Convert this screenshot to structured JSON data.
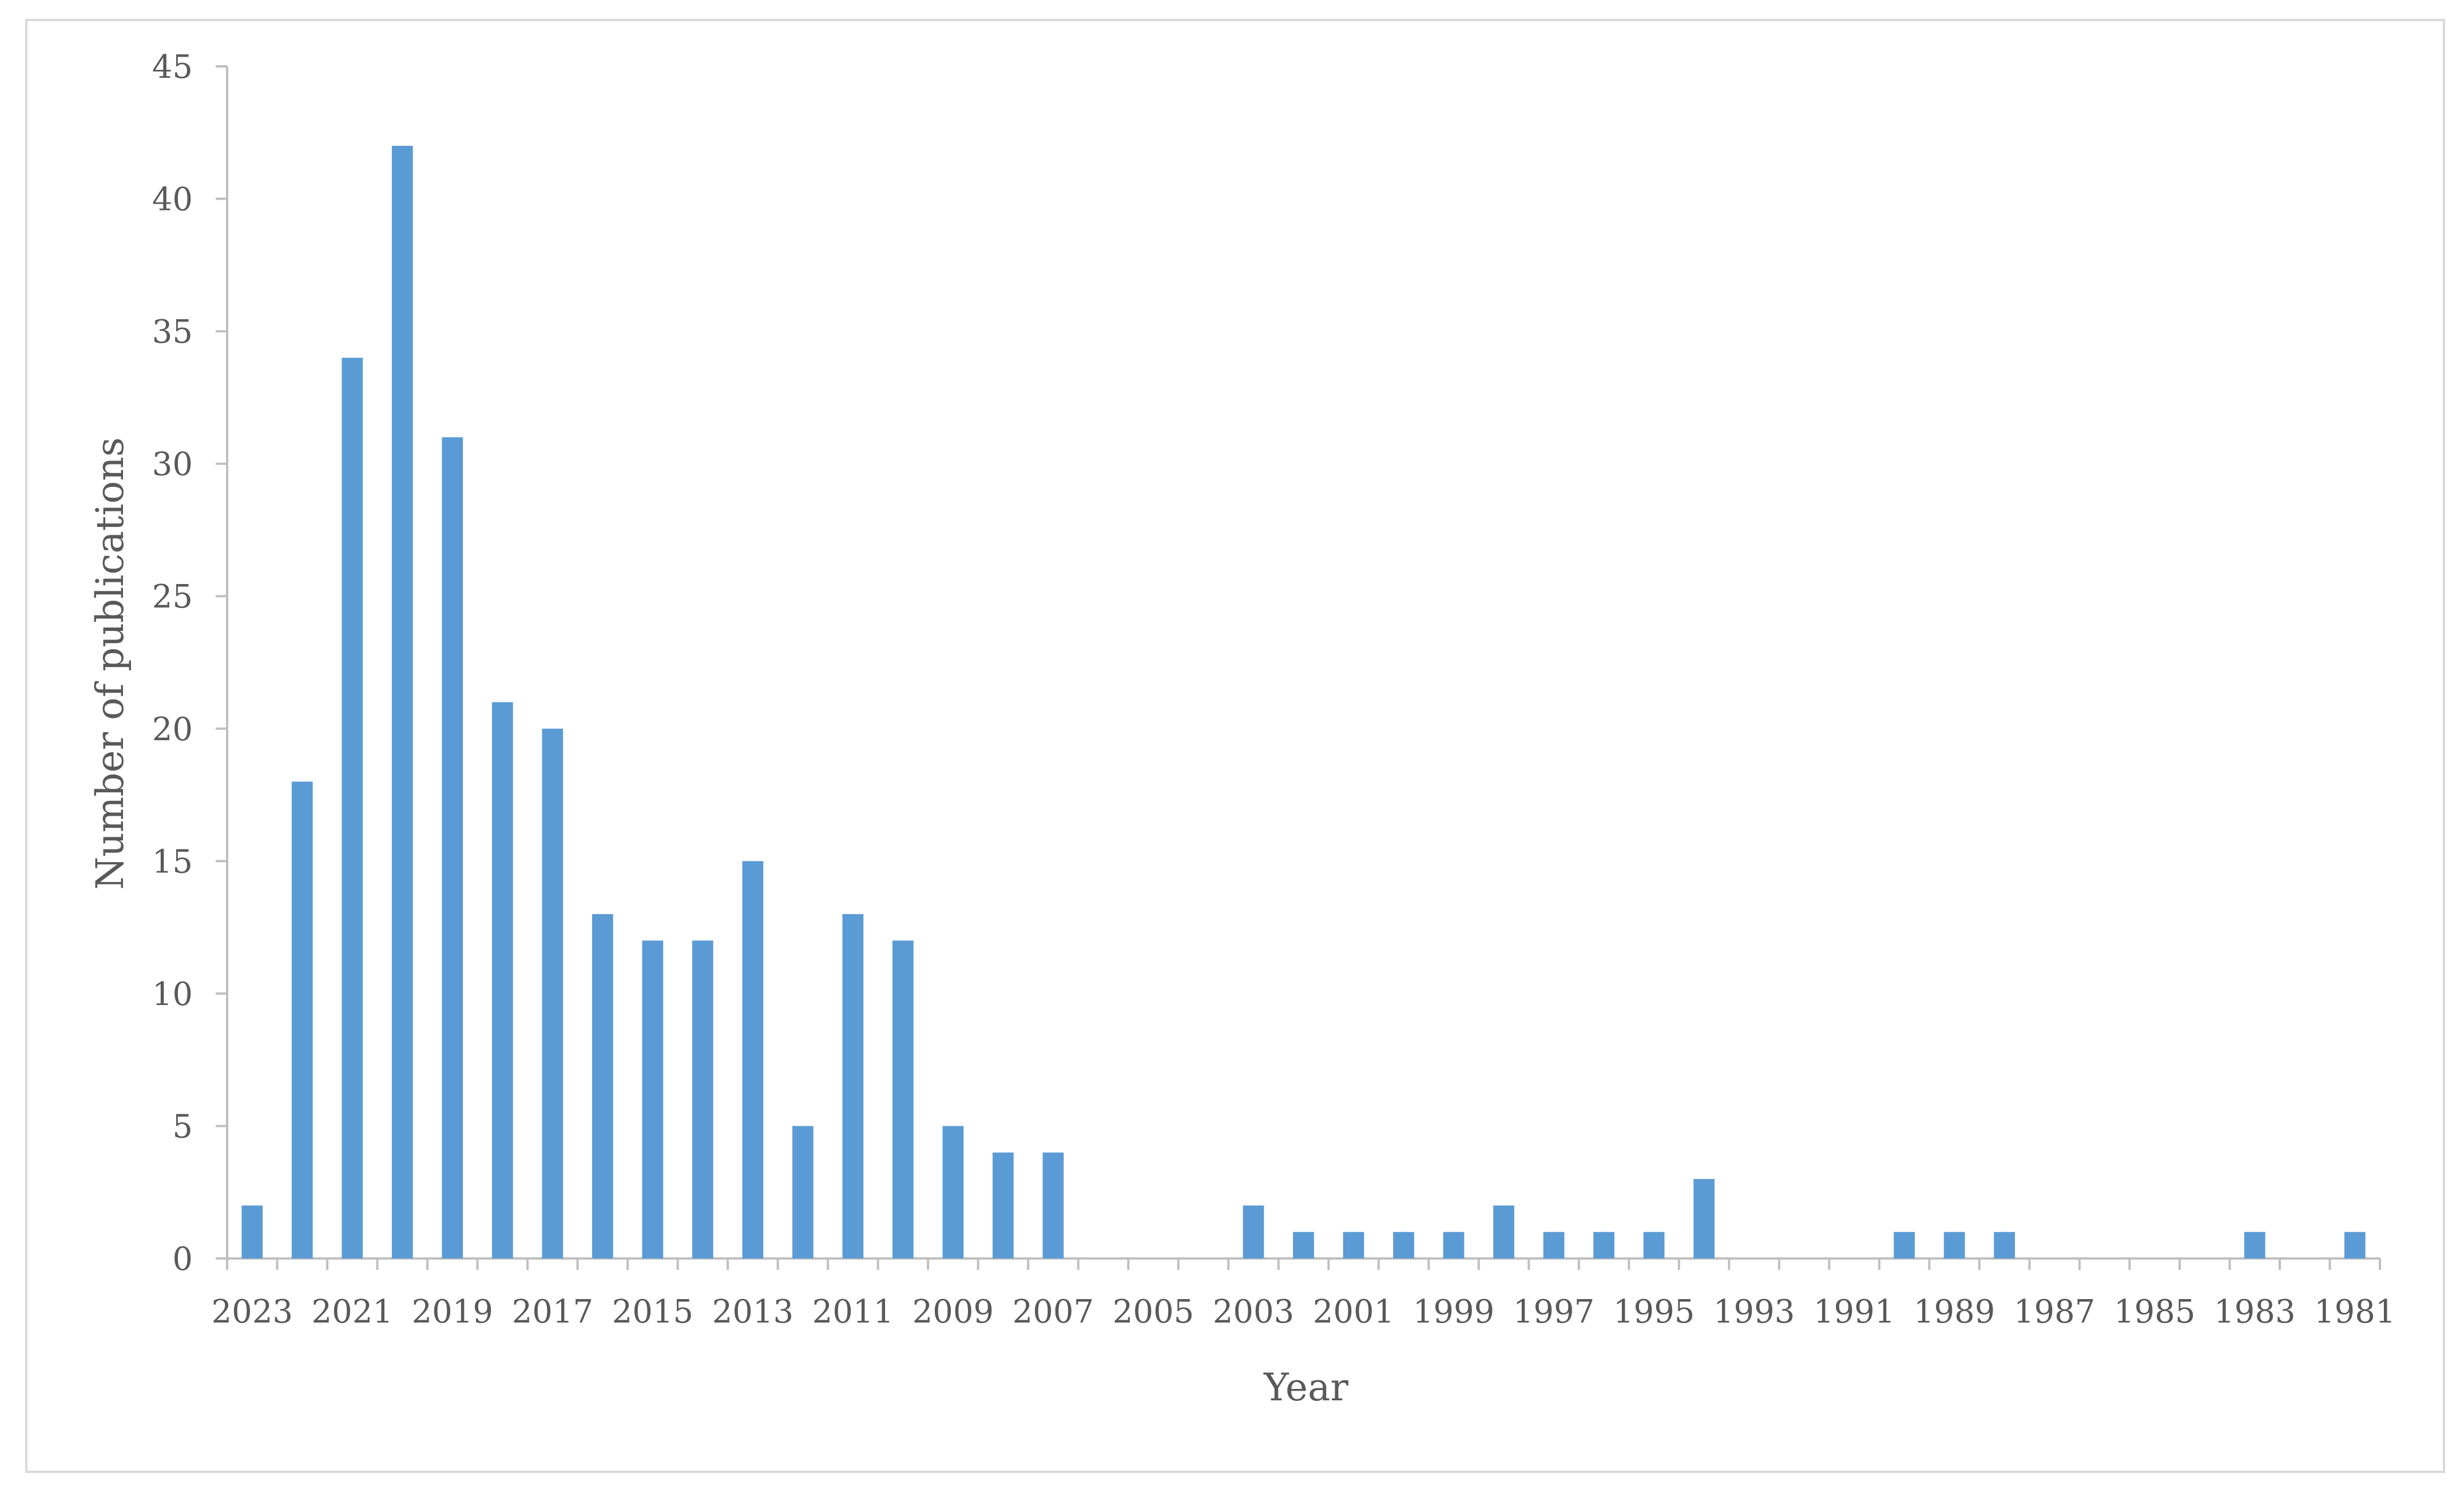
{
  "chart_data": {
    "type": "bar",
    "title": "",
    "xlabel": "Year",
    "ylabel": "Number of publications",
    "ylim": [
      0,
      45
    ],
    "yticks": [
      0,
      5,
      10,
      15,
      20,
      25,
      30,
      35,
      40,
      45
    ],
    "grid": false,
    "legend": "none",
    "bar_color": "#5b9bd5",
    "axis_color": "#bfbfbf",
    "text_color": "#595959",
    "categories": [
      "2023",
      "2022",
      "2021",
      "2020",
      "2019",
      "2018",
      "2017",
      "2016",
      "2015",
      "2014",
      "2013",
      "2012",
      "2011",
      "2010",
      "2009",
      "2008",
      "2007",
      "2006",
      "2005",
      "2004",
      "2003",
      "2002",
      "2001",
      "2000",
      "1999",
      "1998",
      "1997",
      "1996",
      "1995",
      "1994",
      "1993",
      "1992",
      "1991",
      "1990",
      "1989",
      "1988",
      "1987",
      "1986",
      "1985",
      "1984",
      "1983",
      "1982",
      "1981"
    ],
    "visible_tick_labels": [
      "2023",
      "2021",
      "2019",
      "2017",
      "2015",
      "2013",
      "2011",
      "2009",
      "2007",
      "2005",
      "2003",
      "2001",
      "1999",
      "1997",
      "1995",
      "1993",
      "1991",
      "1989",
      "1987",
      "1985",
      "1983",
      "1981"
    ],
    "values": [
      2,
      18,
      34,
      42,
      31,
      21,
      20,
      13,
      12,
      12,
      15,
      5,
      13,
      12,
      5,
      4,
      4,
      0,
      0,
      0,
      2,
      1,
      1,
      1,
      1,
      2,
      1,
      1,
      1,
      3,
      0,
      0,
      0,
      1,
      1,
      1,
      0,
      0,
      0,
      0,
      1,
      0,
      1
    ]
  }
}
